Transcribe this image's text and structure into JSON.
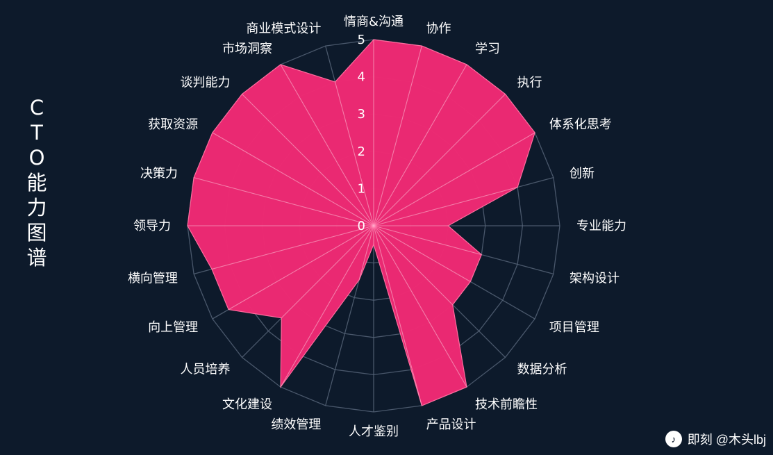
{
  "title": "CTO能力图谱",
  "footer": {
    "icon": "music-note-icon",
    "text": "即刻 @木头lbj"
  },
  "chart_data": {
    "type": "radar",
    "title": "CTO能力图谱",
    "categories": [
      "情商&沟通",
      "协作",
      "学习",
      "执行",
      "体系化思考",
      "创新",
      "专业能力",
      "架构设计",
      "项目管理",
      "数据分析",
      "技术前瞻性",
      "产品设计",
      "人才鉴别",
      "绩效管理",
      "文化建设",
      "人员培养",
      "向上管理",
      "横向管理",
      "领导力",
      "决策力",
      "获取资源",
      "谈判能力",
      "市场洞察",
      "商业模式设计"
    ],
    "values": [
      5,
      5,
      5,
      5,
      5,
      4,
      2,
      3,
      3,
      3,
      5,
      5,
      0.5,
      1.5,
      5,
      3.5,
      4.5,
      4.5,
      5,
      5,
      5,
      5,
      5,
      4
    ],
    "radial_ticks": [
      0,
      1,
      2,
      3,
      4,
      5
    ],
    "rlim": [
      0,
      5
    ],
    "series_color": "#ef2a73",
    "grid_color": "#556377",
    "background": "#0f1b2d"
  }
}
